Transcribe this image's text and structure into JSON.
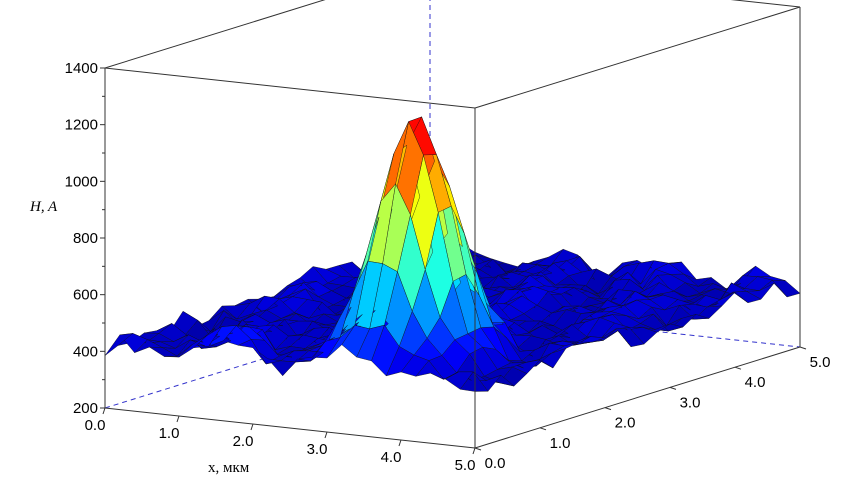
{
  "chart_data": {
    "type": "surface3d",
    "zlabel": "H, A",
    "xlabel": "x, мкм",
    "ylabel": "",
    "zlim": [
      200,
      1400
    ],
    "xlim": [
      0,
      5
    ],
    "ylim": [
      0,
      5
    ],
    "z_ticks": [
      "1400",
      "1200",
      "1000",
      "800",
      "600",
      "400",
      "200"
    ],
    "x_ticks": [
      "0.0",
      "1.0",
      "2.0",
      "3.0",
      "4.0",
      "5.0"
    ],
    "y_ticks": [
      "0.0",
      "1.0",
      "2.0",
      "3.0",
      "4.0",
      "5.0"
    ],
    "colormap": [
      "#00008f",
      "#0000ff",
      "#0080ff",
      "#00ffff",
      "#80ff80",
      "#ffff00",
      "#ff8000",
      "#ff0000",
      "#800000"
    ],
    "grid": {
      "nx": 26,
      "ny": 26
    },
    "baseline": 420,
    "peaks": [
      {
        "x": 3.4,
        "y": 0.9,
        "height": 1300,
        "sx": 0.38,
        "sy": 0.38
      },
      {
        "x": 1.5,
        "y": 0.2,
        "height": 510,
        "sx": 0.25,
        "sy": 0.25
      }
    ],
    "grid_lines": true
  }
}
